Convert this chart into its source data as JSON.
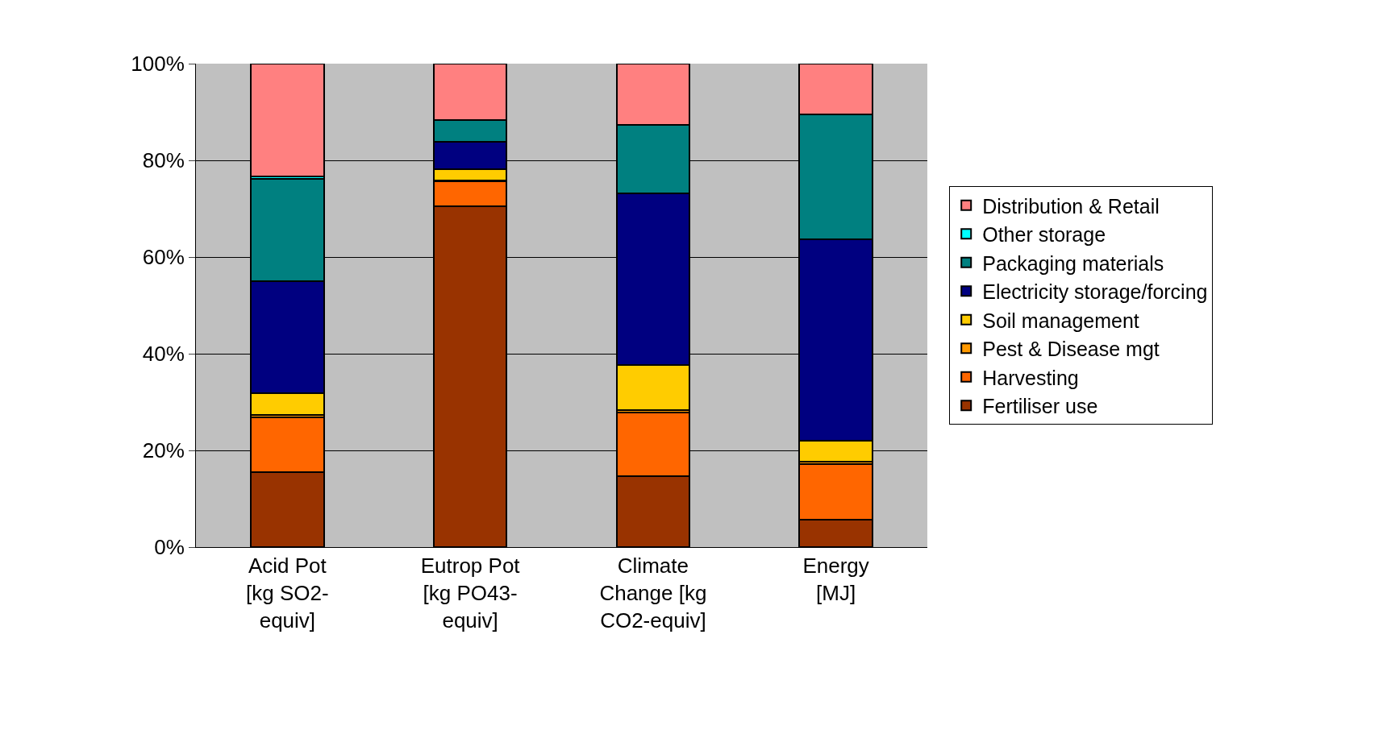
{
  "chart_data": {
    "type": "bar",
    "stacked": true,
    "categories": [
      "Acid Pot\n[kg SO2-\nequiv]",
      "Eutrop Pot\n[kg PO43-\nequiv]",
      "Climate\nChange [kg\nCO2-equiv]",
      "Energy\n[MJ]"
    ],
    "series": [
      {
        "name": "Fertiliser use",
        "color": "#993300",
        "values": [
          15.5,
          70.5,
          14.6,
          5.6
        ]
      },
      {
        "name": "Harvesting",
        "color": "#ff6600",
        "values": [
          11.4,
          5.1,
          13.3,
          11.6
        ]
      },
      {
        "name": "Pest & Disease mgt",
        "color": "#ff9900",
        "values": [
          0.5,
          0.2,
          0.4,
          0.5
        ]
      },
      {
        "name": "Soil management",
        "color": "#ffcc00",
        "values": [
          4.4,
          2.4,
          9.3,
          4.3
        ]
      },
      {
        "name": "Electricity storage/forcing",
        "color": "#000080",
        "values": [
          23.2,
          5.7,
          35.5,
          41.7
        ]
      },
      {
        "name": "Packaging materials",
        "color": "#008080",
        "values": [
          21.2,
          4.4,
          14.3,
          25.8
        ]
      },
      {
        "name": "Other storage",
        "color": "#00ffff",
        "values": [
          0.5,
          0,
          0,
          0
        ]
      },
      {
        "name": "Distribution & Retail",
        "color": "#ff8080",
        "values": [
          23.3,
          11.7,
          12.6,
          10.5
        ]
      }
    ],
    "ylim": [
      0,
      100
    ],
    "yticks": [
      {
        "value": 0,
        "label": "0%"
      },
      {
        "value": 20,
        "label": "20%"
      },
      {
        "value": 40,
        "label": "40%"
      },
      {
        "value": 60,
        "label": "60%"
      },
      {
        "value": 80,
        "label": "80%"
      },
      {
        "value": 100,
        "label": "100%"
      }
    ],
    "grid": "y",
    "legend": "right"
  }
}
